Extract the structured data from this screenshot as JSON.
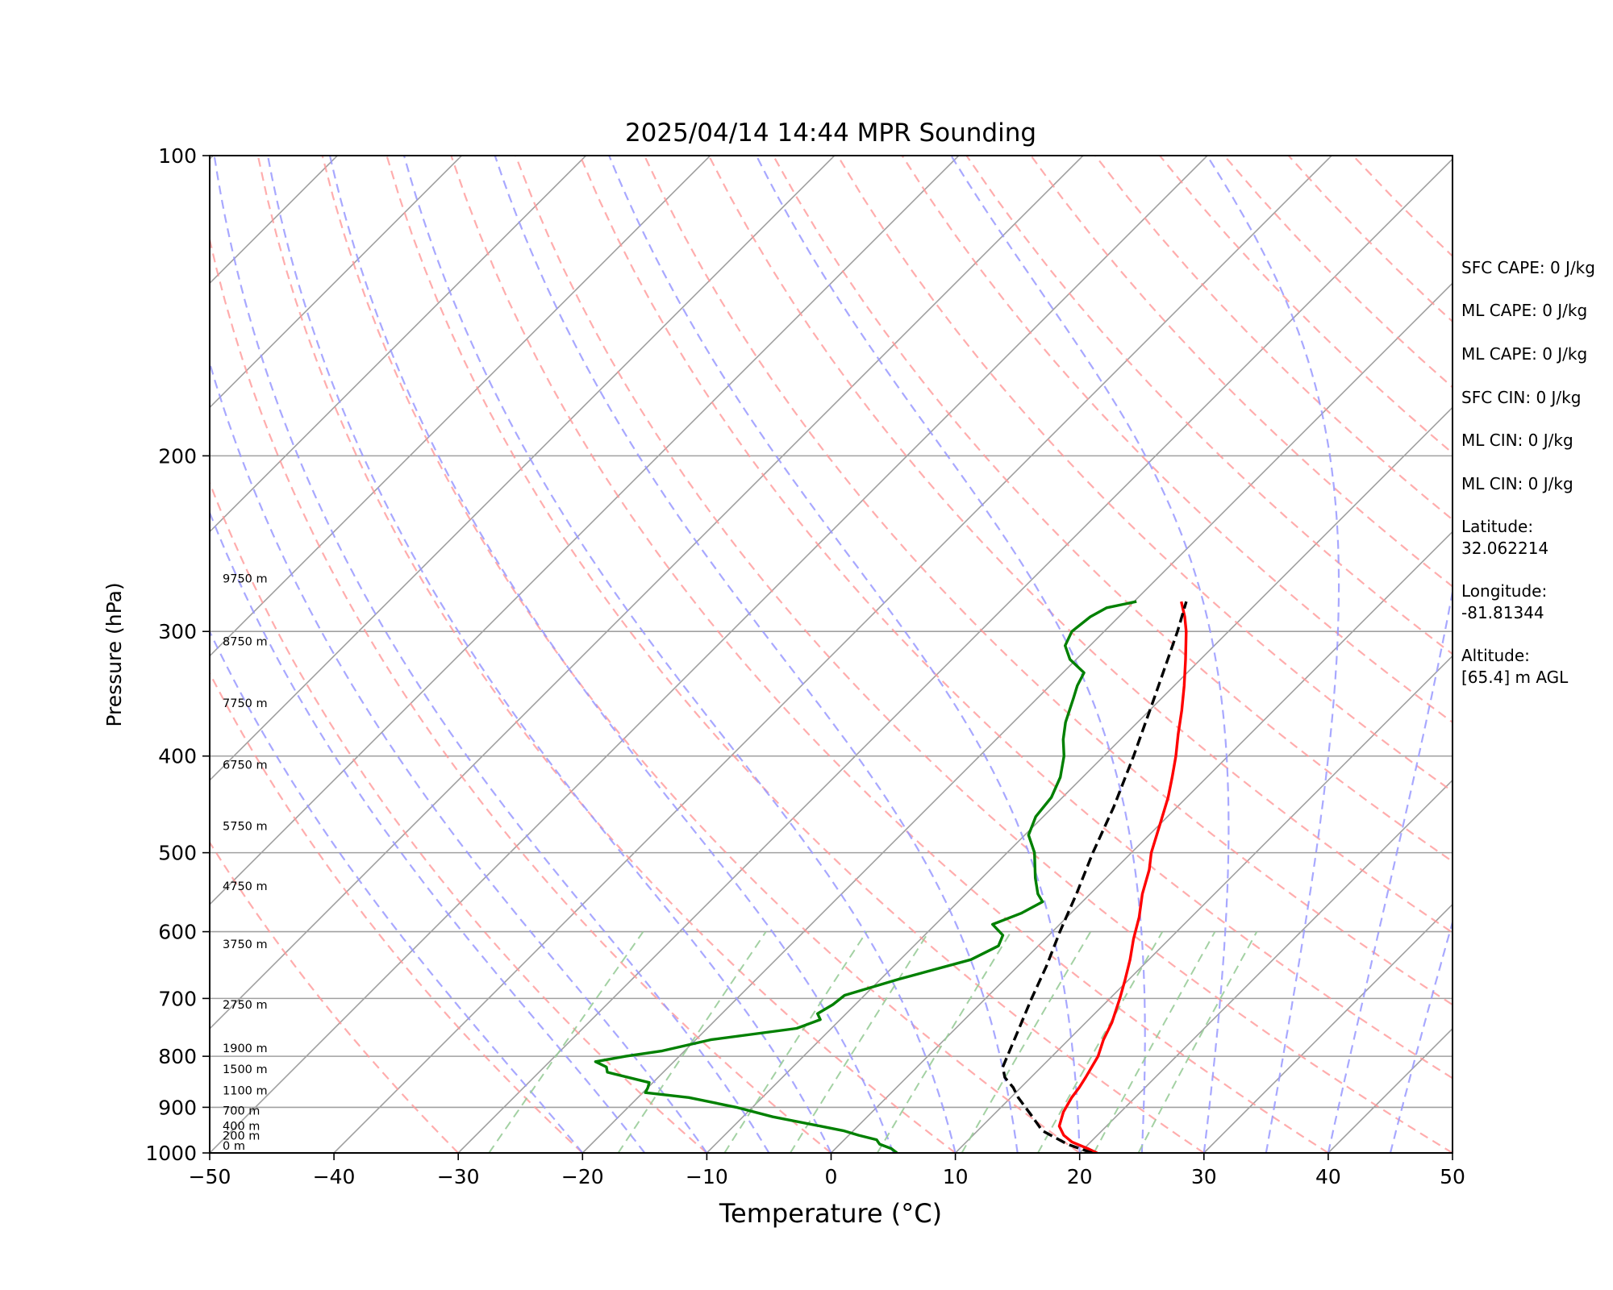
{
  "chart_data": {
    "type": "line",
    "title": "2025/04/14 14:44 MPR Sounding",
    "xlabel": "Temperature (°C)",
    "ylabel": "Pressure (hPa)",
    "xlim": [
      -50,
      50
    ],
    "ylim": [
      1000,
      100
    ],
    "yscale": "log",
    "skew": "skew-T log-P",
    "x_ticks": [
      "−50",
      "−40",
      "−30",
      "−20",
      "−10",
      "0",
      "10",
      "20",
      "30",
      "40",
      "50"
    ],
    "y_ticks": [
      "100",
      "200",
      "300",
      "400",
      "500",
      "600",
      "700",
      "800",
      "900",
      "1000"
    ],
    "height_labels": [
      {
        "p": 1000,
        "text": "0 m"
      },
      {
        "p": 977,
        "text": "200 m"
      },
      {
        "p": 955,
        "text": "400 m"
      },
      {
        "p": 922,
        "text": "700 m"
      },
      {
        "p": 880,
        "text": "1100 m"
      },
      {
        "p": 838,
        "text": "1500 m"
      },
      {
        "p": 798,
        "text": "1900 m"
      },
      {
        "p": 722,
        "text": "2750 m"
      },
      {
        "p": 628,
        "text": "3750 m"
      },
      {
        "p": 549,
        "text": "4750 m"
      },
      {
        "p": 478,
        "text": "5750 m"
      },
      {
        "p": 415,
        "text": "6750 m"
      },
      {
        "p": 360,
        "text": "7750 m"
      },
      {
        "p": 312,
        "text": "8750 m"
      },
      {
        "p": 270,
        "text": "9750 m"
      }
    ],
    "series": [
      {
        "color": "#ff0000",
        "style": "solid",
        "points": [
          [
            1000,
            21.4
          ],
          [
            990,
            20.3
          ],
          [
            975,
            18.5
          ],
          [
            960,
            17.3
          ],
          [
            940,
            16.2
          ],
          [
            910,
            15.4
          ],
          [
            880,
            14.9
          ],
          [
            860,
            14.7
          ],
          [
            840,
            14.4
          ],
          [
            800,
            13.7
          ],
          [
            770,
            12.8
          ],
          [
            740,
            12.1
          ],
          [
            700,
            10.8
          ],
          [
            670,
            9.7
          ],
          [
            640,
            8.5
          ],
          [
            610,
            7.1
          ],
          [
            580,
            5.8
          ],
          [
            550,
            4.2
          ],
          [
            520,
            2.8
          ],
          [
            500,
            1.6
          ],
          [
            470,
            0.1
          ],
          [
            440,
            -1.5
          ],
          [
            420,
            -2.8
          ],
          [
            400,
            -4.2
          ],
          [
            380,
            -5.8
          ],
          [
            360,
            -7.4
          ],
          [
            340,
            -9.2
          ],
          [
            320,
            -11.2
          ],
          [
            300,
            -13.4
          ],
          [
            290,
            -14.7
          ],
          [
            280,
            -16.2
          ]
        ]
      },
      {
        "color": "#008000",
        "style": "solid",
        "points": [
          [
            1000,
            5.3
          ],
          [
            990,
            4.5
          ],
          [
            980,
            3.2
          ],
          [
            970,
            2.6
          ],
          [
            960,
            0.8
          ],
          [
            950,
            -0.8
          ],
          [
            940,
            -3.0
          ],
          [
            920,
            -7.6
          ],
          [
            900,
            -11.3
          ],
          [
            880,
            -15.9
          ],
          [
            870,
            -19.8
          ],
          [
            860,
            -20.0
          ],
          [
            850,
            -20.3
          ],
          [
            830,
            -24.5
          ],
          [
            820,
            -25.0
          ],
          [
            810,
            -26.3
          ],
          [
            800,
            -24.3
          ],
          [
            790,
            -21.8
          ],
          [
            770,
            -18.8
          ],
          [
            750,
            -12.8
          ],
          [
            735,
            -11.6
          ],
          [
            725,
            -12.3
          ],
          [
            710,
            -11.8
          ],
          [
            695,
            -11.6
          ],
          [
            670,
            -8.6
          ],
          [
            640,
            -4.3
          ],
          [
            620,
            -3.2
          ],
          [
            605,
            -3.7
          ],
          [
            590,
            -5.4
          ],
          [
            575,
            -4.0
          ],
          [
            560,
            -3.2
          ],
          [
            550,
            -4.2
          ],
          [
            530,
            -5.7
          ],
          [
            500,
            -7.8
          ],
          [
            480,
            -9.7
          ],
          [
            460,
            -10.6
          ],
          [
            440,
            -10.9
          ],
          [
            420,
            -11.8
          ],
          [
            400,
            -13.2
          ],
          [
            385,
            -14.6
          ],
          [
            370,
            -15.8
          ],
          [
            350,
            -17.1
          ],
          [
            340,
            -17.8
          ],
          [
            330,
            -18.3
          ],
          [
            320,
            -20.5
          ],
          [
            310,
            -22.0
          ],
          [
            300,
            -22.6
          ],
          [
            290,
            -22.3
          ],
          [
            284,
            -21.7
          ],
          [
            280,
            -19.8
          ]
        ]
      },
      {
        "color": "#000000",
        "style": "dashed",
        "points": [
          [
            1000,
            21.0
          ],
          [
            980,
            18.3
          ],
          [
            950,
            15.2
          ],
          [
            920,
            13.3
          ],
          [
            880,
            10.6
          ],
          [
            860,
            9.4
          ],
          [
            840,
            7.9
          ],
          [
            820,
            6.9
          ],
          [
            800,
            6.4
          ],
          [
            750,
            5.1
          ],
          [
            700,
            3.7
          ],
          [
            650,
            2.3
          ],
          [
            600,
            0.6
          ],
          [
            550,
            -1.1
          ],
          [
            500,
            -3.1
          ],
          [
            450,
            -5.1
          ],
          [
            400,
            -7.6
          ],
          [
            350,
            -10.6
          ],
          [
            300,
            -14.1
          ],
          [
            280,
            -15.8
          ]
        ]
      }
    ],
    "annotations": [
      "SFC CAPE: 0 J/kg",
      "ML CAPE: 0 J/kg",
      "ML CAPE: 0 J/kg",
      "SFC CIN: 0 J/kg",
      "ML CIN: 0 J/kg",
      "ML CIN: 0 J/kg",
      "Latitude:",
      "32.062214",
      "Longitude:",
      "-81.81344",
      "Altitude:",
      "[65.4] m AGL"
    ],
    "colors": {
      "dry_adiabats": "#ff9999",
      "moist_adiabats": "#9999ff",
      "mixing_ratio": "#99cc99",
      "isotherms": "#a0a0a0",
      "isobars": "#a0a0a0"
    }
  }
}
